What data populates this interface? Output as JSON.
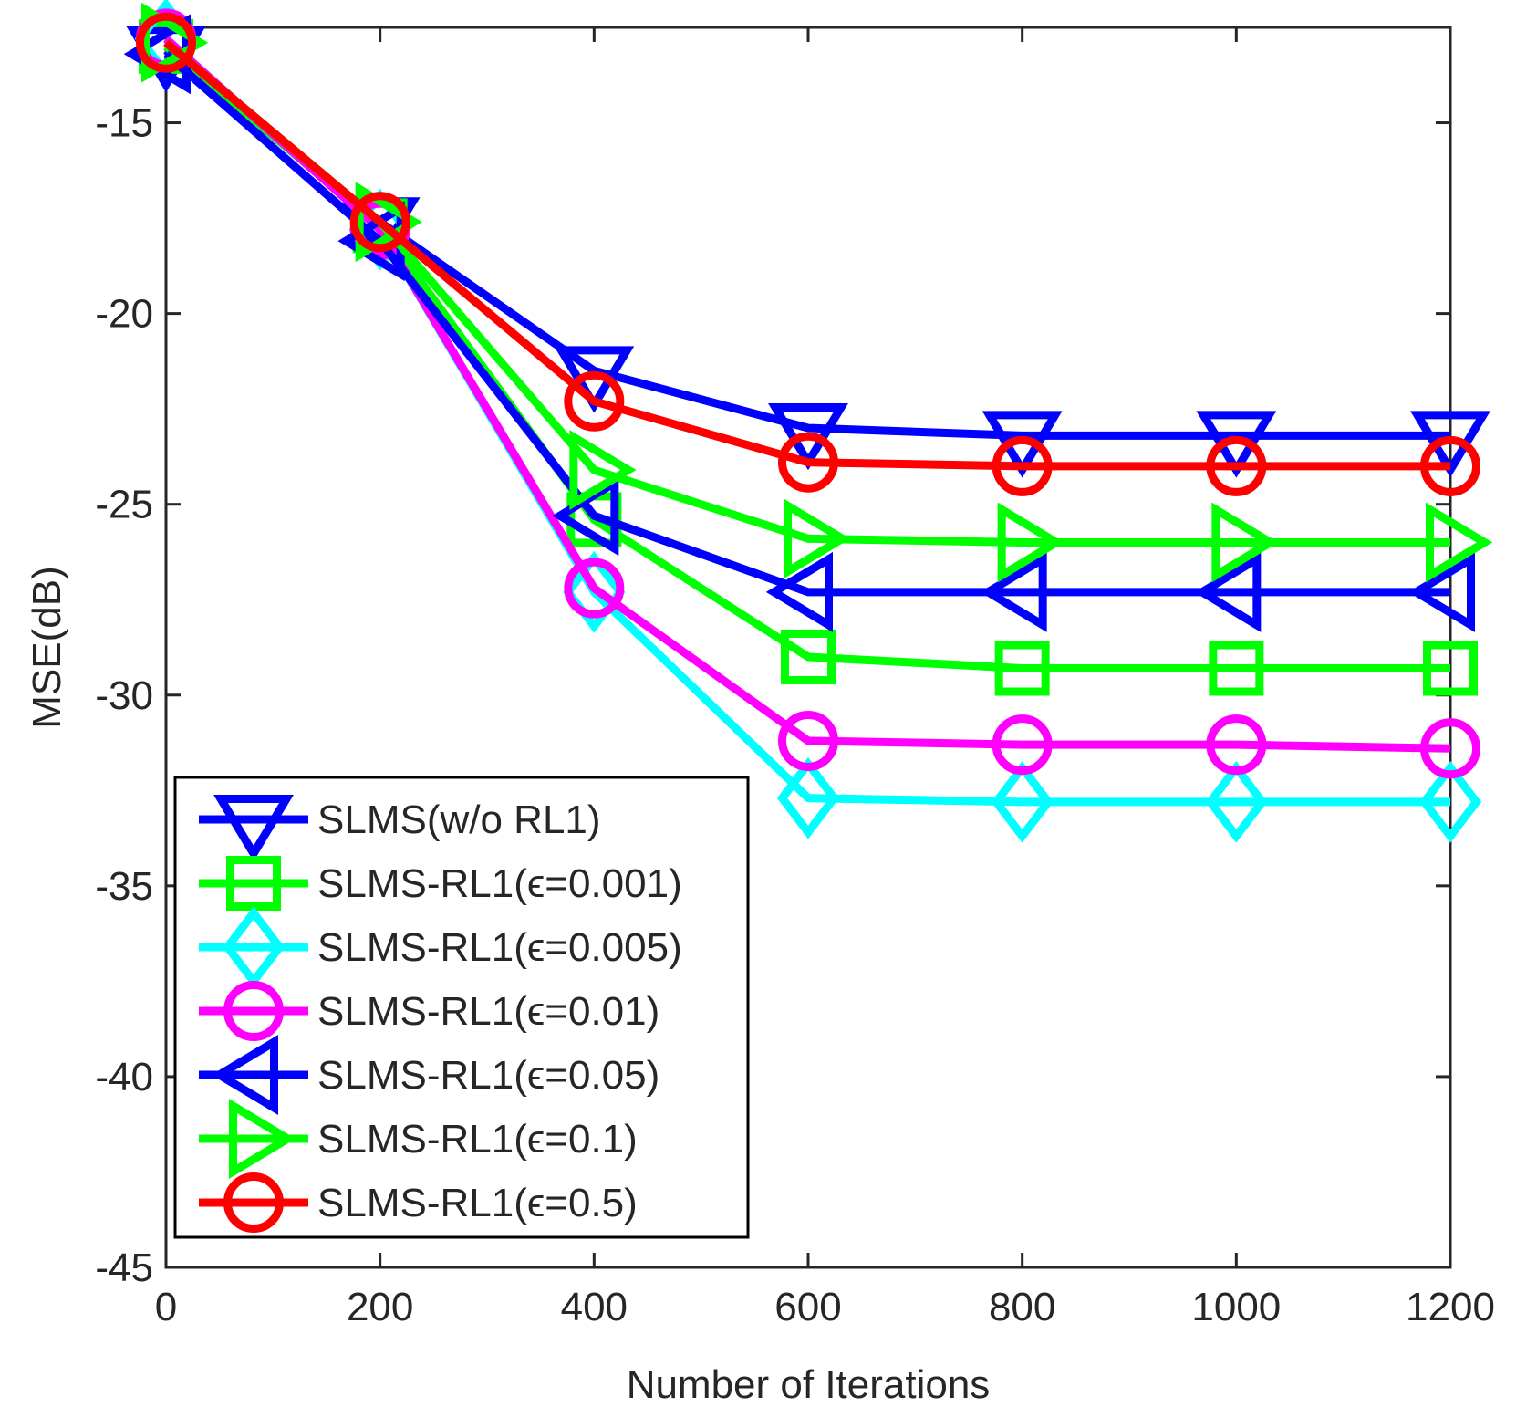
{
  "chart_data": {
    "type": "line",
    "title": "",
    "xlabel": "Number of Iterations",
    "ylabel": "MSE(dB)",
    "xlim": [
      0,
      1200
    ],
    "ylim": [
      -45,
      -12.5
    ],
    "xticks": [
      0,
      200,
      400,
      600,
      800,
      1000,
      1200
    ],
    "yticks": [
      -45,
      -40,
      -35,
      -30,
      -25,
      -20,
      -15
    ],
    "grid": false,
    "legend_position": "bottom-left",
    "series": [
      {
        "name": "SLMS(w/o RL1)",
        "color": "#0000ff",
        "marker": "triangle-down",
        "x": [
          0,
          200,
          400,
          600,
          800,
          1000,
          1200
        ],
        "values": [
          -13.1,
          -17.6,
          -21.5,
          -23.0,
          -23.2,
          -23.2,
          -23.2
        ]
      },
      {
        "name": "SLMS-RL1(ϵ=0.001)",
        "color": "#00ff00",
        "marker": "square",
        "x": [
          0,
          200,
          400,
          600,
          800,
          1000,
          1200
        ],
        "values": [
          -13.0,
          -17.7,
          -25.4,
          -29.0,
          -29.3,
          -29.3,
          -29.3
        ]
      },
      {
        "name": "SLMS-RL1(ϵ=0.005)",
        "color": "#00ffff",
        "marker": "diamond",
        "x": [
          0,
          200,
          400,
          600,
          800,
          1000,
          1200
        ],
        "values": [
          -12.8,
          -17.8,
          -27.3,
          -32.7,
          -32.8,
          -32.8,
          -32.8
        ]
      },
      {
        "name": "SLMS-RL1(ϵ=0.01)",
        "color": "#ff00ff",
        "marker": "circle",
        "x": [
          0,
          200,
          400,
          600,
          800,
          1000,
          1200
        ],
        "values": [
          -12.8,
          -17.8,
          -27.2,
          -31.2,
          -31.3,
          -31.3,
          -31.4
        ]
      },
      {
        "name": "SLMS-RL1(ϵ=0.05)",
        "color": "#0000ff",
        "marker": "triangle-left",
        "x": [
          0,
          200,
          400,
          600,
          800,
          1000,
          1200
        ],
        "values": [
          -13.2,
          -18.1,
          -25.3,
          -27.3,
          -27.3,
          -27.3,
          -27.3
        ]
      },
      {
        "name": "SLMS-RL1(ϵ=0.1)",
        "color": "#00ff00",
        "marker": "triangle-right",
        "x": [
          0,
          200,
          400,
          600,
          800,
          1000,
          1200
        ],
        "values": [
          -12.9,
          -17.6,
          -24.1,
          -25.9,
          -26.0,
          -26.0,
          -26.0
        ]
      },
      {
        "name": "SLMS-RL1(ϵ=0.5)",
        "color": "#ff0000",
        "marker": "circle",
        "x": [
          0,
          200,
          400,
          600,
          800,
          1000,
          1200
        ],
        "values": [
          -12.9,
          -17.6,
          -22.3,
          -23.9,
          -24.0,
          -24.0,
          -24.0
        ]
      }
    ]
  }
}
